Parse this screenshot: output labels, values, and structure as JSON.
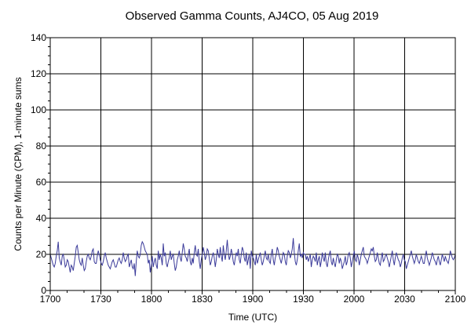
{
  "chart_data": {
    "type": "line",
    "title": "Observed Gamma Counts, AJ4CO, 05 Aug 2019",
    "xlabel": "Time (UTC)",
    "ylabel": "Counts per Minute (CPM), 1-minute sums",
    "xlim": [
      "1700",
      "2100"
    ],
    "ylim": [
      0,
      140
    ],
    "x_ticks": [
      "1700",
      "1730",
      "1800",
      "1830",
      "1900",
      "1930",
      "2000",
      "2030",
      "2100"
    ],
    "y_ticks": [
      0,
      20,
      40,
      60,
      80,
      100,
      120,
      140
    ],
    "grid": true,
    "legend": "none",
    "series": [
      {
        "color": "#3b3b9a",
        "x": [
          "1700",
          "2100"
        ],
        "y_every_minute": [
          20,
          18,
          16,
          14,
          13,
          15,
          19,
          22,
          27,
          18,
          16,
          14,
          19,
          20,
          17,
          13,
          14,
          17,
          16,
          13,
          10,
          14,
          13,
          11,
          15,
          19,
          24,
          25,
          21,
          17,
          15,
          14,
          18,
          14,
          11,
          12,
          16,
          19,
          20,
          18,
          17,
          19,
          22,
          23,
          16,
          15,
          15,
          19,
          22,
          20,
          17,
          15,
          14,
          16,
          19,
          21,
          18,
          16,
          14,
          13,
          12,
          14,
          16,
          17,
          15,
          13,
          13,
          15,
          17,
          18,
          16,
          15,
          17,
          21,
          18,
          16,
          17,
          19,
          20,
          13,
          15,
          17,
          13,
          12,
          15,
          8,
          16,
          22,
          19,
          18,
          20,
          25,
          27,
          26,
          24,
          22,
          21,
          20,
          15,
          17,
          10,
          14,
          19,
          13,
          16,
          18,
          14,
          12,
          22,
          17,
          20,
          18,
          14,
          26,
          19,
          21,
          15,
          13,
          16,
          18,
          22,
          17,
          19,
          20,
          15,
          11,
          13,
          17,
          19,
          22,
          18,
          16,
          21,
          26,
          23,
          19,
          18,
          16,
          20,
          23,
          16,
          14,
          18,
          15,
          21,
          25,
          20,
          19,
          23,
          16,
          12,
          17,
          20,
          24,
          21,
          17,
          19,
          23,
          22,
          18,
          14,
          16,
          19,
          21,
          18,
          13,
          17,
          23,
          20,
          18,
          24,
          19,
          16,
          25,
          20,
          17,
          22,
          28,
          21,
          17,
          19,
          23,
          20,
          16,
          14,
          18,
          21,
          19,
          23,
          17,
          15,
          20,
          24,
          22,
          18,
          16,
          21,
          14,
          17,
          20,
          12,
          22,
          19,
          18,
          16,
          14,
          20,
          15,
          17,
          19,
          21,
          17,
          14,
          16,
          19,
          22,
          18,
          17,
          20,
          16,
          15,
          20,
          23,
          17,
          14,
          18,
          20,
          24,
          22,
          19,
          17,
          15,
          18,
          21,
          20,
          16,
          14,
          19,
          22,
          21,
          18,
          20,
          23,
          29,
          21,
          16,
          14,
          17,
          22,
          26,
          19,
          20,
          18,
          21,
          20,
          20,
          17,
          19,
          16,
          18,
          20,
          13,
          17,
          19,
          18,
          16,
          21,
          14,
          17,
          19,
          13,
          16,
          21,
          18,
          16,
          21,
          15,
          13,
          17,
          20,
          22,
          16,
          14,
          18,
          15,
          13,
          17,
          20,
          19,
          15,
          18,
          16,
          12,
          14,
          16,
          19,
          14,
          16,
          20,
          21,
          18,
          13,
          16,
          19,
          22,
          17,
          16,
          20,
          18,
          14,
          17,
          20,
          22,
          24,
          19,
          18,
          17,
          15,
          17,
          19,
          21,
          23,
          22,
          24,
          19,
          16,
          17,
          21,
          18,
          15,
          14,
          18,
          21,
          16,
          17,
          19,
          20,
          18,
          16,
          13,
          16,
          19,
          22,
          17,
          14,
          18,
          21,
          19,
          17,
          16,
          13,
          15,
          18,
          20,
          17,
          16,
          12,
          14,
          16,
          18,
          20,
          22,
          19,
          17,
          15,
          17,
          20,
          18,
          16,
          15,
          17,
          19,
          17,
          15,
          15,
          19,
          22,
          18,
          16,
          14,
          16,
          18,
          21,
          19,
          17,
          16,
          14,
          17,
          19,
          16,
          14,
          17,
          20,
          18,
          16,
          19,
          17,
          16,
          15,
          18,
          22,
          20,
          18,
          17,
          18,
          20
        ]
      }
    ]
  }
}
